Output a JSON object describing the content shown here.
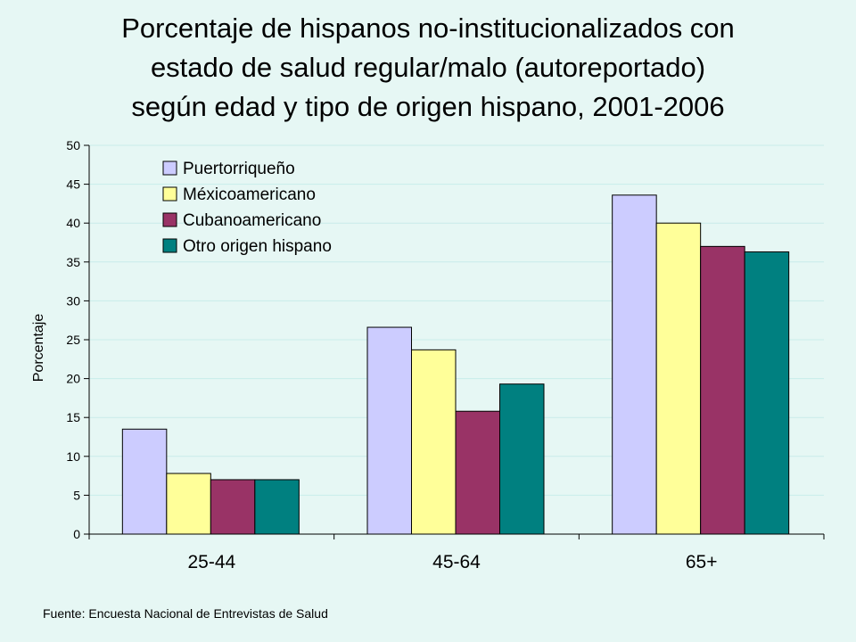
{
  "title_lines": [
    "Porcentaje de hispanos no-institucionalizados con",
    "estado de salud regular/malo (autoreportado)",
    "según edad y tipo de origen hispano, 2001-2006"
  ],
  "source": "Fuente: Encuesta Nacional de Entrevistas de Salud",
  "chart_data": {
    "type": "bar",
    "title": "Porcentaje de hispanos no-institucionalizados con estado de salud regular/malo (autoreportado) según edad y tipo de origen hispano, 2001-2006",
    "xlabel": "",
    "ylabel": "Porcentaje",
    "ylim": [
      0,
      50
    ],
    "yticks": [
      0,
      5,
      10,
      15,
      20,
      25,
      30,
      35,
      40,
      45,
      50
    ],
    "grid": true,
    "legend_position": "top-left",
    "categories": [
      "25-44",
      "45-64",
      "65+"
    ],
    "series": [
      {
        "name": "Puertorriqueño",
        "color": "#ccccff",
        "values": [
          13.5,
          26.6,
          43.6
        ]
      },
      {
        "name": "Méxicoamericano",
        "color": "#ffff99",
        "values": [
          7.8,
          23.7,
          40.0
        ]
      },
      {
        "name": "Cubanoamericano",
        "color": "#993366",
        "values": [
          7.0,
          15.8,
          37.0
        ]
      },
      {
        "name": "Otro origen hispano",
        "color": "#008080",
        "values": [
          7.0,
          19.3,
          36.3
        ]
      }
    ]
  }
}
